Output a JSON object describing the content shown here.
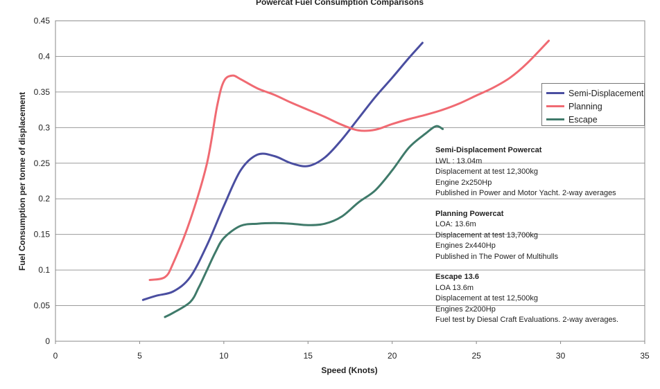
{
  "chart_data": {
    "type": "line",
    "title": "Powercat Fuel Consumption Comparisons",
    "xlabel": "Speed (Knots)",
    "ylabel": "Fuel Consumption per tonne of displacement",
    "xlim": [
      0,
      35
    ],
    "ylim": [
      0,
      0.45
    ],
    "x_ticks": [
      "0",
      "5",
      "10",
      "15",
      "20",
      "25",
      "30",
      "35"
    ],
    "y_ticks": [
      "0",
      "0.05",
      "0.1",
      "0.15",
      "0.2",
      "0.25",
      "0.3",
      "0.35",
      "0.4",
      "0.45"
    ],
    "grid": "horizontal",
    "legend_position": "right",
    "series": [
      {
        "name": "Semi-Displacement",
        "color": "#4a4ea0",
        "x": [
          5.2,
          6,
          7,
          8,
          9,
          10,
          11,
          12,
          13,
          14,
          15,
          16,
          17,
          18,
          19,
          20,
          21,
          21.8
        ],
        "y": [
          0.058,
          0.064,
          0.07,
          0.09,
          0.135,
          0.19,
          0.24,
          0.262,
          0.26,
          0.25,
          0.246,
          0.258,
          0.283,
          0.313,
          0.343,
          0.37,
          0.398,
          0.419
        ]
      },
      {
        "name": "Planning",
        "color": "#f06a72",
        "x": [
          5.6,
          6.5,
          7,
          8,
          9,
          9.6,
          10,
          10.5,
          11,
          12,
          13,
          14,
          15,
          16,
          17,
          18,
          19,
          20,
          21,
          22,
          23,
          24,
          25,
          26,
          27,
          28,
          29.3
        ],
        "y": [
          0.086,
          0.09,
          0.11,
          0.17,
          0.25,
          0.33,
          0.365,
          0.373,
          0.368,
          0.355,
          0.346,
          0.335,
          0.325,
          0.315,
          0.304,
          0.296,
          0.297,
          0.305,
          0.312,
          0.318,
          0.325,
          0.334,
          0.345,
          0.356,
          0.37,
          0.39,
          0.422
        ]
      },
      {
        "name": "Escape",
        "color": "#3f7a6a",
        "x": [
          6.5,
          7,
          8,
          8.5,
          9,
          9.5,
          10,
          11,
          12,
          13,
          14,
          15,
          16,
          17,
          18,
          19,
          20,
          21,
          22,
          22.6,
          23
        ],
        "y": [
          0.034,
          0.04,
          0.055,
          0.075,
          0.1,
          0.125,
          0.145,
          0.162,
          0.165,
          0.166,
          0.165,
          0.163,
          0.165,
          0.175,
          0.195,
          0.212,
          0.24,
          0.272,
          0.292,
          0.302,
          0.298
        ]
      }
    ]
  },
  "legend": [
    {
      "label": "Semi-Displacement",
      "color": "#4a4ea0"
    },
    {
      "label": "Planning",
      "color": "#f06a72"
    },
    {
      "label": "Escape",
      "color": "#3f7a6a"
    }
  ],
  "notes": [
    {
      "title": "Semi-Displacement Powercat",
      "lines": [
        "LWL : 13.04m",
        "Displacement at test 12,300kg",
        "Engine 2x250Hp",
        "Published in Power and Motor Yacht. 2-way averages"
      ]
    },
    {
      "title": "Planning Powercat",
      "lines": [
        "LOA: 13.6m",
        "Displacement at test 13,700kg",
        "Engines 2x440Hp",
        "Published in The Power of Multihulls"
      ]
    },
    {
      "title": "Escape 13.6",
      "lines": [
        "LOA 13.6m",
        "Displacement at test 12,500kg",
        "Engines 2x200Hp",
        "Fuel test by Diesal Craft Evaluations. 2-way averages."
      ]
    }
  ]
}
